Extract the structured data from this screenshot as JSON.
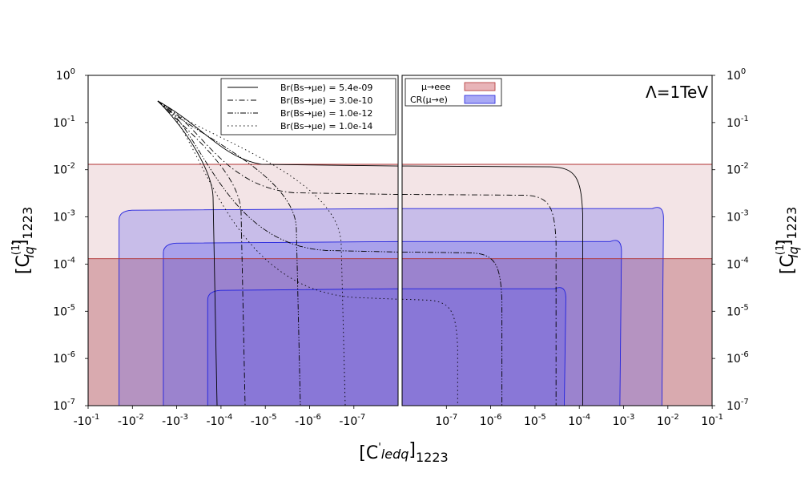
{
  "chart_data": {
    "type": "line",
    "annotation": "Λ=1TeV",
    "xlabel": {
      "base": "[C",
      "prime": "'",
      "sub_italic": "ledq",
      "close": "]",
      "sub": "1223"
    },
    "ylabel": {
      "base": "[C",
      "sup": "(1)",
      "sub_italic": "lq",
      "close": "]",
      "sub": "1223"
    },
    "yscale": "log",
    "ylim": [
      1e-07,
      1
    ],
    "xscale": "symlog (split panels)",
    "xlim": [
      -0.1,
      0.1
    ],
    "grid": false,
    "y_ticks": [
      "10^0",
      "10^-1",
      "10^-2",
      "10^-3",
      "10^-4",
      "10^-5",
      "10^-6",
      "10^-7"
    ],
    "x_ticks_left": [
      "-10^-1",
      "-10^-2",
      "-10^-3",
      "-10^-4",
      "-10^-5",
      "-10^-6",
      "-10^-7"
    ],
    "x_ticks_right": [
      "10^-7",
      "10^-6",
      "10^-5",
      "10^-4",
      "10^-3",
      "10^-2",
      "10^-1"
    ],
    "legend_lines": {
      "placement": "top-right of left panel",
      "entries": [
        {
          "label": "Br(Bs→μe) = 5.4e-09",
          "style": "solid"
        },
        {
          "label": "Br(Bs→μe) = 3.0e-10",
          "style": "dashdot"
        },
        {
          "label": "Br(Bs→μe) = 1.0e-12",
          "style": "dashdotdot"
        },
        {
          "label": "Br(Bs→μe) = 1.0e-14",
          "style": "dotted"
        }
      ]
    },
    "legend_regions": {
      "placement": "top-left of right panel",
      "entries": [
        {
          "label": "μ→eee",
          "color": "#e8b4b8"
        },
        {
          "label": "CR(μ→e)",
          "color": "#a9a9f5"
        }
      ]
    },
    "mu_eee_bounds": [
      0.00013,
      0.013
    ],
    "cr_regions": [
      {
        "y_top": 0.0015,
        "x_min": -0.02,
        "x_max": 0.008
      },
      {
        "y_top": 0.0003,
        "x_min": -0.002,
        "x_max": 0.0009
      },
      {
        "y_top": 3e-05,
        "x_min": -0.0002,
        "x_max": 5e-05
      }
    ],
    "series": [
      {
        "label_ref": 0,
        "style": "solid",
        "left_plateau_y": 0.012,
        "right_edge_x": 0.00012
      },
      {
        "label_ref": 1,
        "style": "dashdot",
        "left_plateau_y": 0.003,
        "right_edge_x": 3e-05
      },
      {
        "label_ref": 2,
        "style": "dashdotdot",
        "left_plateau_y": 0.00018,
        "right_edge_x": 1.8e-06
      },
      {
        "label_ref": 3,
        "style": "dotted",
        "left_plateau_y": 1.8e-05,
        "right_edge_x": 1.8e-07
      }
    ]
  },
  "colors": {
    "mu_eee_fill": "#d9aaaf",
    "mu_eee_upper_fill": "#f3e4e6",
    "cr_edge": "#2222dd",
    "cr_fill": "#5a5af0",
    "mu_eee_line": "#b03030"
  }
}
